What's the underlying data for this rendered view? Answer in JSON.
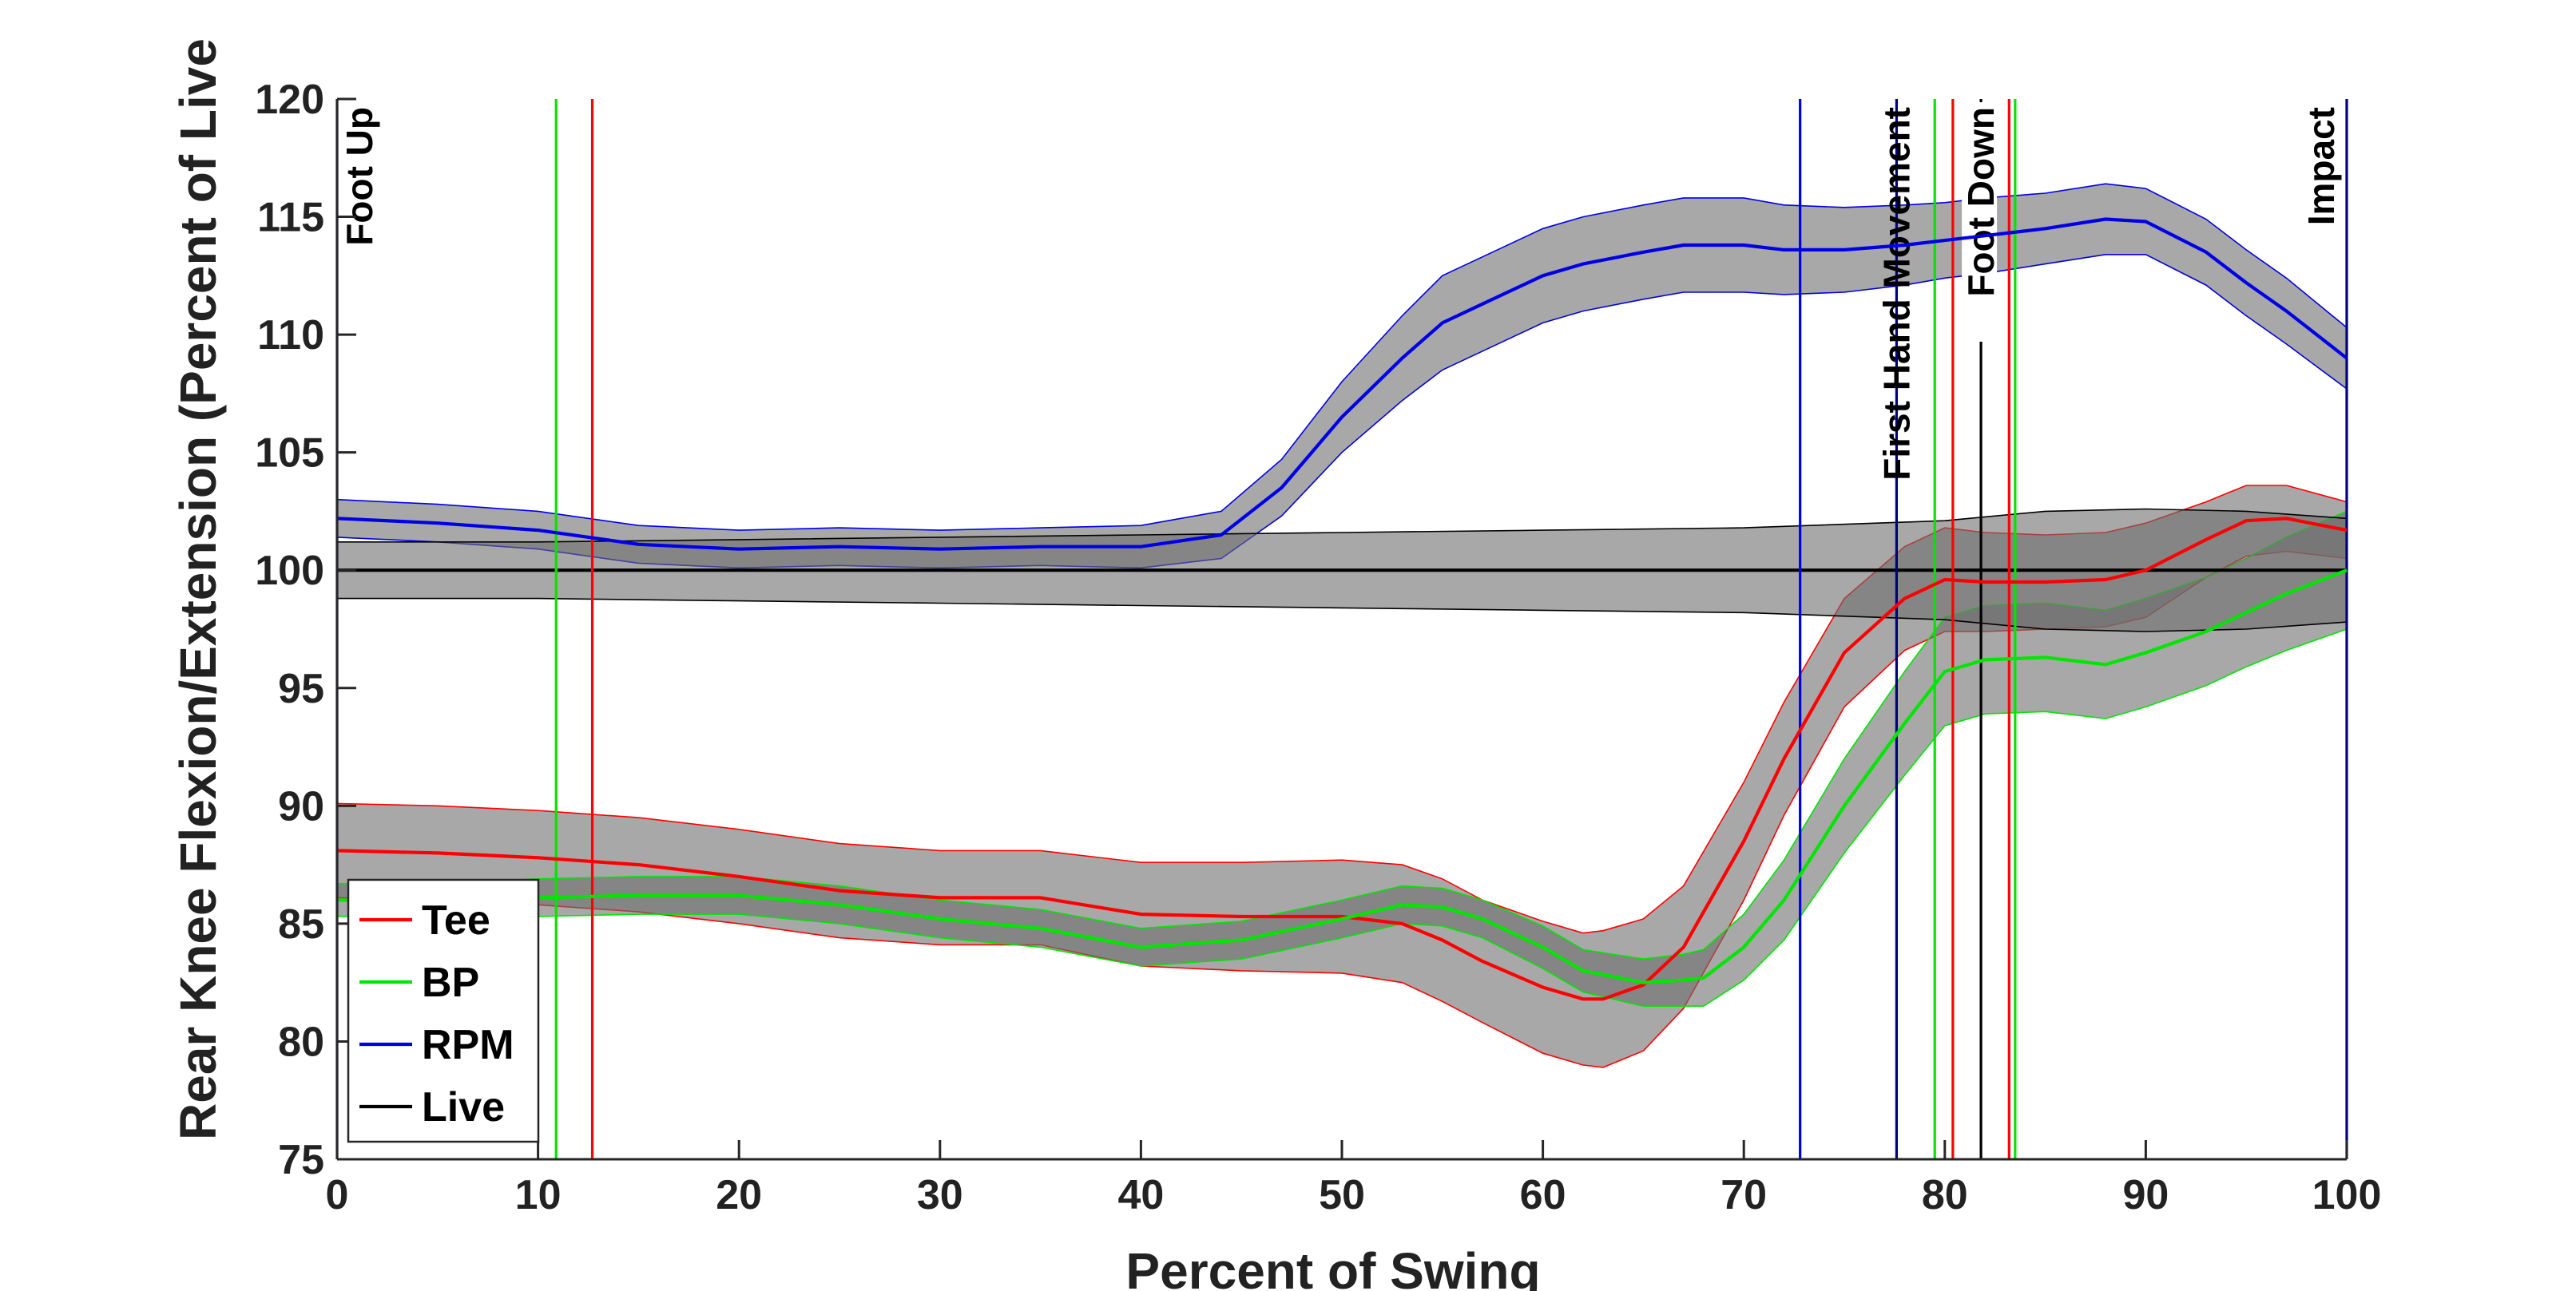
{
  "chart_data": {
    "type": "line",
    "title": "",
    "xlabel": "Percent of Swing",
    "ylabel": "Rear Knee Flexion/Extension (Percent of Live",
    "xlim": [
      0,
      100
    ],
    "ylim": [
      75,
      120
    ],
    "xticks": [
      0,
      10,
      20,
      30,
      40,
      50,
      60,
      70,
      80,
      90,
      100
    ],
    "yticks": [
      75,
      80,
      85,
      90,
      95,
      100,
      105,
      110,
      115,
      120
    ],
    "grid": false,
    "legend_position": "bottom-left",
    "series": [
      {
        "name": "Tee",
        "color": "#ff0000",
        "x": [
          0,
          5,
          10,
          15,
          20,
          25,
          30,
          35,
          40,
          45,
          50,
          53,
          55,
          57,
          60,
          62,
          63,
          65,
          67,
          70,
          72,
          75,
          78,
          80,
          82,
          85,
          88,
          90,
          93,
          95,
          97,
          100
        ],
        "y": [
          88.1,
          88.0,
          87.8,
          87.5,
          87.0,
          86.4,
          86.1,
          86.1,
          85.4,
          85.3,
          85.3,
          85.0,
          84.3,
          83.4,
          82.3,
          81.8,
          81.8,
          82.4,
          84.0,
          88.5,
          92.0,
          96.5,
          98.8,
          99.6,
          99.5,
          99.5,
          99.6,
          100.0,
          101.3,
          102.1,
          102.2,
          101.7
        ],
        "band": [
          2.0,
          2.0,
          2.0,
          2.0,
          2.0,
          2.0,
          2.0,
          2.0,
          2.2,
          2.3,
          2.4,
          2.5,
          2.6,
          2.6,
          2.8,
          2.8,
          2.9,
          2.8,
          2.6,
          2.5,
          2.4,
          2.3,
          2.2,
          2.2,
          2.1,
          2.0,
          2.0,
          2.0,
          1.6,
          1.5,
          1.4,
          1.2
        ]
      },
      {
        "name": "BP",
        "color": "#00e600",
        "x": [
          0,
          5,
          10,
          15,
          20,
          25,
          30,
          35,
          40,
          45,
          50,
          53,
          55,
          57,
          60,
          62,
          65,
          67,
          68,
          70,
          72,
          75,
          78,
          80,
          82,
          85,
          88,
          90,
          93,
          95,
          97,
          100
        ],
        "y": [
          86.0,
          86.0,
          86.1,
          86.2,
          86.2,
          85.8,
          85.2,
          84.8,
          84.0,
          84.3,
          85.2,
          85.8,
          85.7,
          85.2,
          84.0,
          83.0,
          82.5,
          82.6,
          82.7,
          84.0,
          86.0,
          90.0,
          93.5,
          95.7,
          96.2,
          96.3,
          96.0,
          96.5,
          97.4,
          98.2,
          99.0,
          100.0
        ],
        "band": [
          0.7,
          0.7,
          0.8,
          0.8,
          0.8,
          0.8,
          0.8,
          0.8,
          0.8,
          0.8,
          0.8,
          0.8,
          0.8,
          0.8,
          0.9,
          0.9,
          1.0,
          1.1,
          1.2,
          1.4,
          1.7,
          2.0,
          2.2,
          2.3,
          2.3,
          2.3,
          2.3,
          2.3,
          2.3,
          2.3,
          2.4,
          2.5
        ]
      },
      {
        "name": "RPM",
        "color": "#0000e6",
        "x": [
          0,
          5,
          10,
          15,
          20,
          25,
          30,
          35,
          40,
          44,
          47,
          50,
          53,
          55,
          57,
          60,
          62,
          65,
          67,
          70,
          72,
          75,
          78,
          80,
          82,
          85,
          88,
          90,
          93,
          95,
          97,
          100
        ],
        "y": [
          102.2,
          102.0,
          101.7,
          101.1,
          100.9,
          101.0,
          100.9,
          101.0,
          101.0,
          101.5,
          103.5,
          106.5,
          109.0,
          110.5,
          111.3,
          112.5,
          113.0,
          113.5,
          113.8,
          113.8,
          113.6,
          113.6,
          113.8,
          114.0,
          114.2,
          114.5,
          114.9,
          114.8,
          113.5,
          112.2,
          111.0,
          109.0
        ],
        "band": [
          0.8,
          0.8,
          0.8,
          0.8,
          0.8,
          0.8,
          0.8,
          0.8,
          0.9,
          1.0,
          1.2,
          1.5,
          1.8,
          2.0,
          2.0,
          2.0,
          2.0,
          2.0,
          2.0,
          2.0,
          1.9,
          1.8,
          1.7,
          1.6,
          1.6,
          1.5,
          1.5,
          1.4,
          1.4,
          1.4,
          1.4,
          1.3
        ]
      },
      {
        "name": "Live",
        "color": "#000000",
        "x": [
          0,
          10,
          20,
          30,
          40,
          50,
          60,
          70,
          80,
          85,
          90,
          95,
          100
        ],
        "y": [
          100,
          100,
          100,
          100,
          100,
          100,
          100,
          100,
          100,
          100,
          100,
          100,
          100
        ],
        "band": [
          1.2,
          1.2,
          1.3,
          1.4,
          1.5,
          1.6,
          1.7,
          1.8,
          2.1,
          2.5,
          2.6,
          2.5,
          2.2
        ]
      }
    ],
    "vertical_markers": [
      {
        "x": 0,
        "color": "#000080",
        "label": "Foot Up"
      },
      {
        "x": 10.9,
        "color": "#00e600",
        "label": ""
      },
      {
        "x": 12.7,
        "color": "#ff0000",
        "label": ""
      },
      {
        "x": 72.8,
        "color": "#0000e6",
        "label": ""
      },
      {
        "x": 77.6,
        "color": "#000080",
        "label": "First Hand Movement"
      },
      {
        "x": 79.5,
        "color": "#00e600",
        "label": ""
      },
      {
        "x": 80.4,
        "color": "#ff0000",
        "label": ""
      },
      {
        "x": 81.8,
        "color": "#000000",
        "label": "Foot Down"
      },
      {
        "x": 83.2,
        "color": "#ff0000",
        "label": ""
      },
      {
        "x": 83.5,
        "color": "#00e600",
        "label": ""
      },
      {
        "x": 100,
        "color": "#000080",
        "label": "Impact"
      }
    ]
  }
}
